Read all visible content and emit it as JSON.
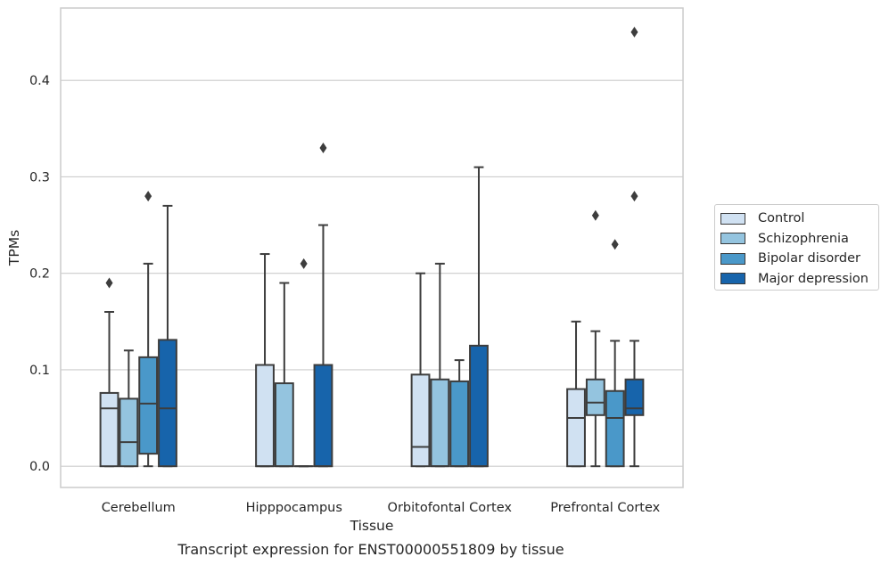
{
  "chart_data": {
    "type": "boxplot",
    "title": "",
    "caption": "Transcript expression for ENST00000551809 by tissue",
    "xlabel": "Tissue",
    "ylabel": "TPMs",
    "ylim": [
      -0.022,
      0.475
    ],
    "yticks": [
      0.0,
      0.1,
      0.2,
      0.3,
      0.4
    ],
    "ytick_labels": [
      "0.0",
      "0.1",
      "0.2",
      "0.3",
      "0.4"
    ],
    "grid": "horizontal",
    "legend_position": "right",
    "categories": [
      "Cerebellum",
      "Hipppocampus",
      "Orbitofontal Cortex",
      "Prefrontal Cortex"
    ],
    "series": [
      {
        "name": "Control",
        "color": "#d0e1f2",
        "boxes": [
          {
            "q1": 0.0,
            "median": 0.06,
            "q3": 0.076,
            "whislo": 0.0,
            "whishi": 0.16,
            "fliers": [
              0.19
            ]
          },
          {
            "q1": 0.0,
            "median": 0.0,
            "q3": 0.105,
            "whislo": 0.0,
            "whishi": 0.22,
            "fliers": []
          },
          {
            "q1": 0.0,
            "median": 0.02,
            "q3": 0.095,
            "whislo": 0.0,
            "whishi": 0.2,
            "fliers": []
          },
          {
            "q1": 0.0,
            "median": 0.05,
            "q3": 0.08,
            "whislo": 0.0,
            "whishi": 0.15,
            "fliers": []
          }
        ]
      },
      {
        "name": "Schizophrenia",
        "color": "#94c4df",
        "boxes": [
          {
            "q1": 0.0,
            "median": 0.025,
            "q3": 0.07,
            "whislo": 0.0,
            "whishi": 0.12,
            "fliers": []
          },
          {
            "q1": 0.0,
            "median": 0.0,
            "q3": 0.086,
            "whislo": 0.0,
            "whishi": 0.19,
            "fliers": []
          },
          {
            "q1": 0.0,
            "median": 0.0,
            "q3": 0.09,
            "whislo": 0.0,
            "whishi": 0.21,
            "fliers": []
          },
          {
            "q1": 0.053,
            "median": 0.066,
            "q3": 0.09,
            "whislo": 0.0,
            "whishi": 0.14,
            "fliers": [
              0.26
            ]
          }
        ]
      },
      {
        "name": "Bipolar disorder",
        "color": "#4a98c9",
        "boxes": [
          {
            "q1": 0.013,
            "median": 0.065,
            "q3": 0.113,
            "whislo": 0.0,
            "whishi": 0.21,
            "fliers": [
              0.28
            ]
          },
          {
            "q1": 0.0,
            "median": 0.0,
            "q3": 0.0,
            "whislo": 0.0,
            "whishi": 0.0,
            "fliers": [
              0.21
            ]
          },
          {
            "q1": 0.0,
            "median": 0.0,
            "q3": 0.088,
            "whislo": 0.0,
            "whishi": 0.11,
            "fliers": []
          },
          {
            "q1": 0.0,
            "median": 0.05,
            "q3": 0.078,
            "whislo": 0.0,
            "whishi": 0.13,
            "fliers": [
              0.23
            ]
          }
        ]
      },
      {
        "name": "Major depression",
        "color": "#1764ab",
        "boxes": [
          {
            "q1": 0.0,
            "median": 0.06,
            "q3": 0.131,
            "whislo": 0.0,
            "whishi": 0.27,
            "fliers": []
          },
          {
            "q1": 0.0,
            "median": 0.0,
            "q3": 0.105,
            "whislo": 0.0,
            "whishi": 0.25,
            "fliers": [
              0.33
            ]
          },
          {
            "q1": 0.0,
            "median": 0.0,
            "q3": 0.125,
            "whislo": 0.0,
            "whishi": 0.31,
            "fliers": []
          },
          {
            "q1": 0.053,
            "median": 0.06,
            "q3": 0.09,
            "whislo": 0.0,
            "whishi": 0.13,
            "fliers": [
              0.28,
              0.45
            ]
          }
        ]
      }
    ]
  }
}
